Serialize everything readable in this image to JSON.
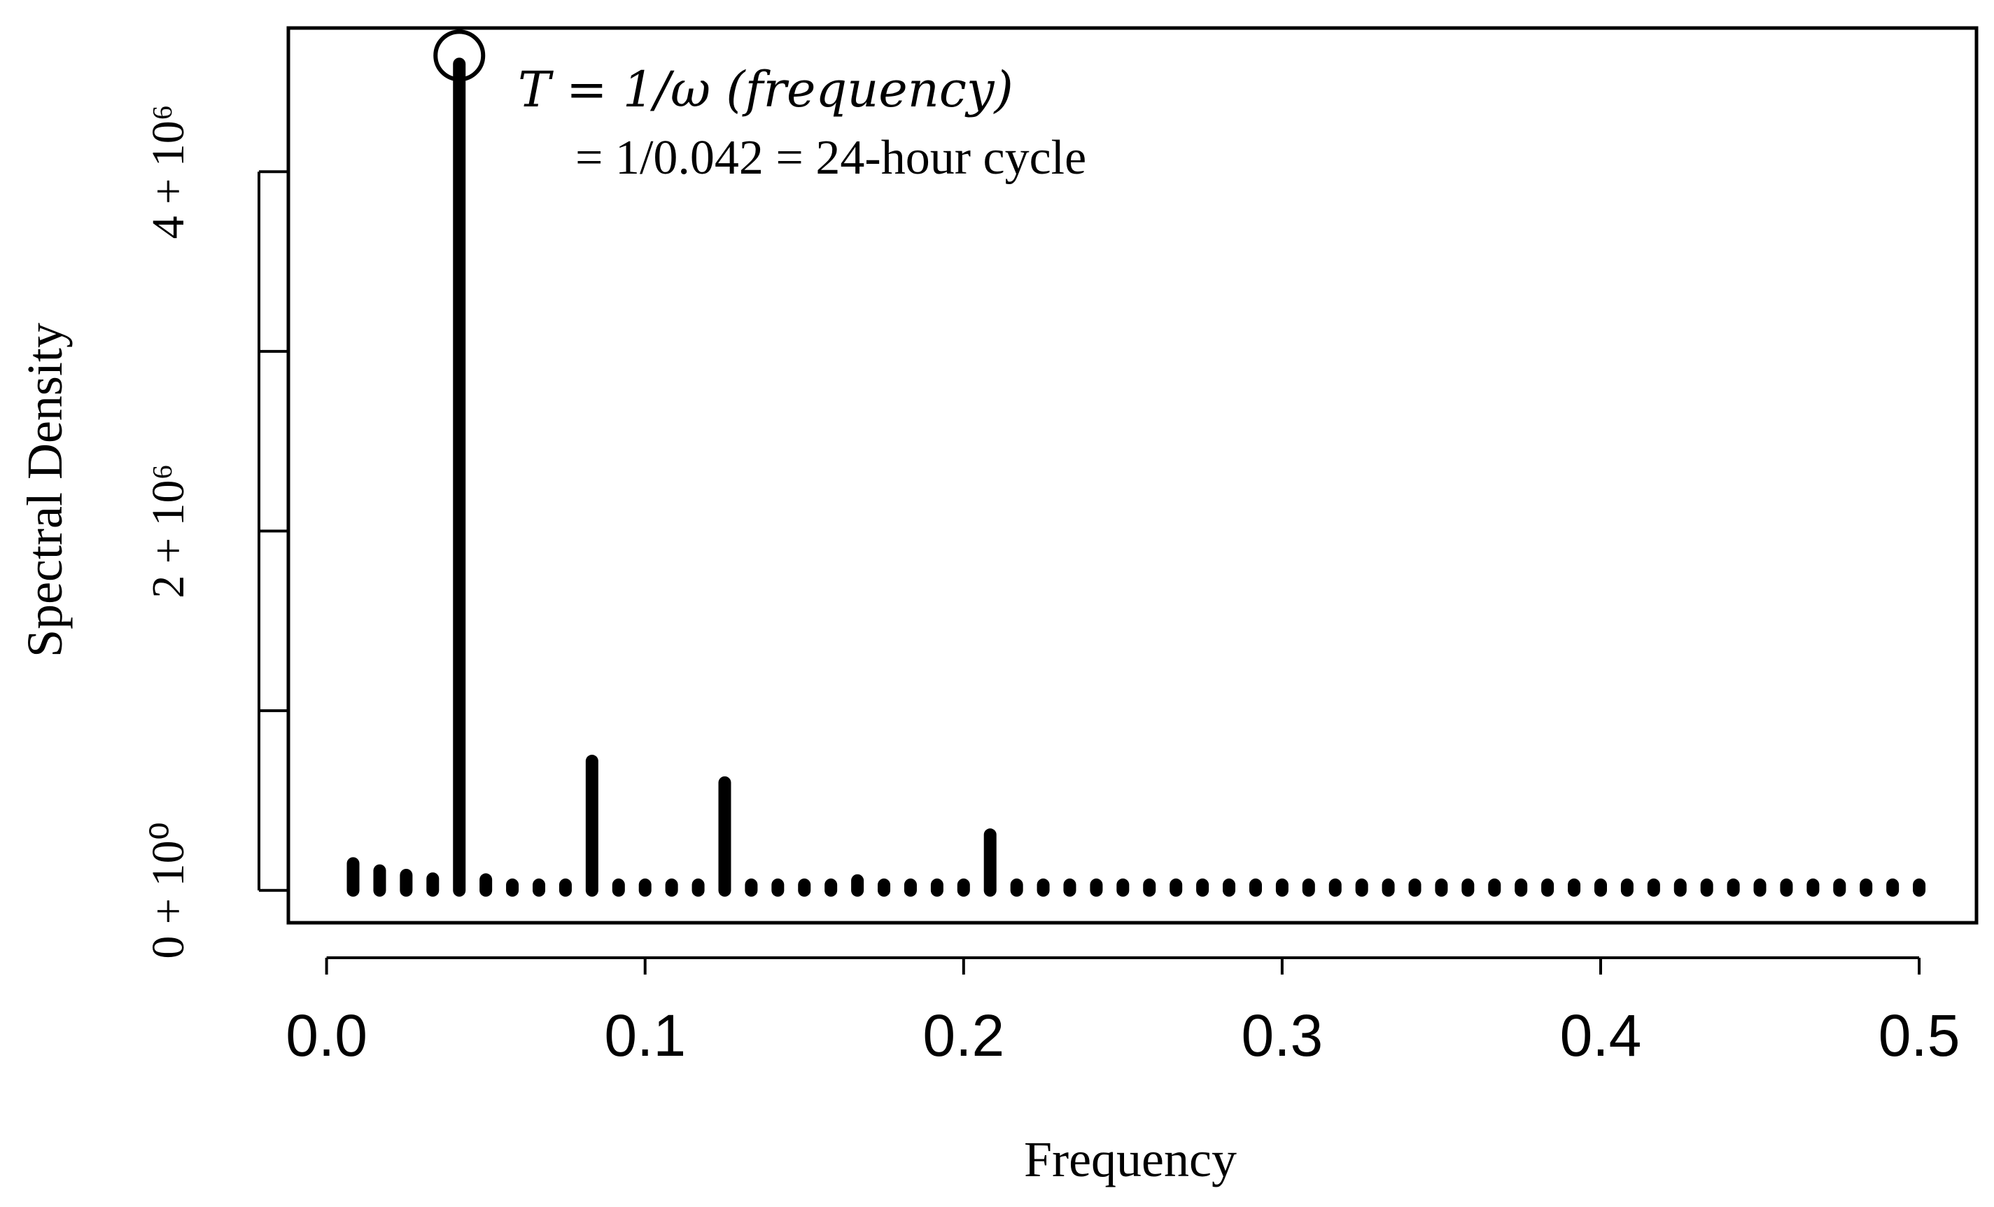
{
  "chart_data": {
    "type": "bar",
    "title": "",
    "xlabel": "Frequency",
    "ylabel": "Spectral Density",
    "xlim": [
      -0.012,
      0.518
    ],
    "ylim": [
      -180000,
      4800000
    ],
    "x_ticks": [
      0.0,
      0.1,
      0.2,
      0.3,
      0.4,
      0.5
    ],
    "x_tick_labels": [
      "0.0",
      "0.1",
      "0.2",
      "0.3",
      "0.4",
      "0.5"
    ],
    "y_ticks": [
      0,
      1000000,
      2000000,
      3000000,
      4000000
    ],
    "y_tick_labels": [
      "0 + 10⁰",
      "",
      "2 + 10⁶",
      "",
      "4 + 10⁶"
    ],
    "grid": false,
    "series": [
      {
        "x": [
          0.00833,
          0.01667,
          0.025,
          0.03333,
          0.04167,
          0.05,
          0.05833,
          0.06667,
          0.075,
          0.08333,
          0.09167,
          0.1,
          0.10833,
          0.11667,
          0.125,
          0.13333,
          0.14167,
          0.15,
          0.15833,
          0.16667,
          0.175,
          0.18333,
          0.19167,
          0.2,
          0.20833,
          0.21667,
          0.225,
          0.23333,
          0.24167,
          0.25,
          0.25833,
          0.26667,
          0.275,
          0.28333,
          0.29167,
          0.3,
          0.30833,
          0.31667,
          0.325,
          0.33333,
          0.34167,
          0.35,
          0.35833,
          0.36667,
          0.375,
          0.38333,
          0.39167,
          0.4,
          0.40833,
          0.41667,
          0.425,
          0.43333,
          0.44167,
          0.45,
          0.45833,
          0.46667,
          0.475,
          0.48333,
          0.49167,
          0.5
        ],
        "values": [
          150000,
          110000,
          85000,
          65000,
          4600000,
          60000,
          30000,
          15000,
          10000,
          720000,
          5000,
          5000,
          5000,
          5000,
          600000,
          5000,
          5000,
          5000,
          5000,
          55000,
          5000,
          5000,
          5000,
          5000,
          310000,
          5000,
          5000,
          5000,
          5000,
          5000,
          5000,
          5000,
          5000,
          5000,
          5000,
          5000,
          5000,
          5000,
          5000,
          5000,
          5000,
          5000,
          5000,
          5000,
          5000,
          5000,
          5000,
          5000,
          5000,
          5000,
          5000,
          5000,
          5000,
          5000,
          5000,
          5000,
          5000,
          5000,
          5000,
          5000
        ]
      }
    ],
    "highlight": {
      "x": 0.04167,
      "value": 4600000
    },
    "annotations": [
      "T = 1/ω (frequency)",
      "= 1/0.042 = 24-hour cycle"
    ]
  }
}
